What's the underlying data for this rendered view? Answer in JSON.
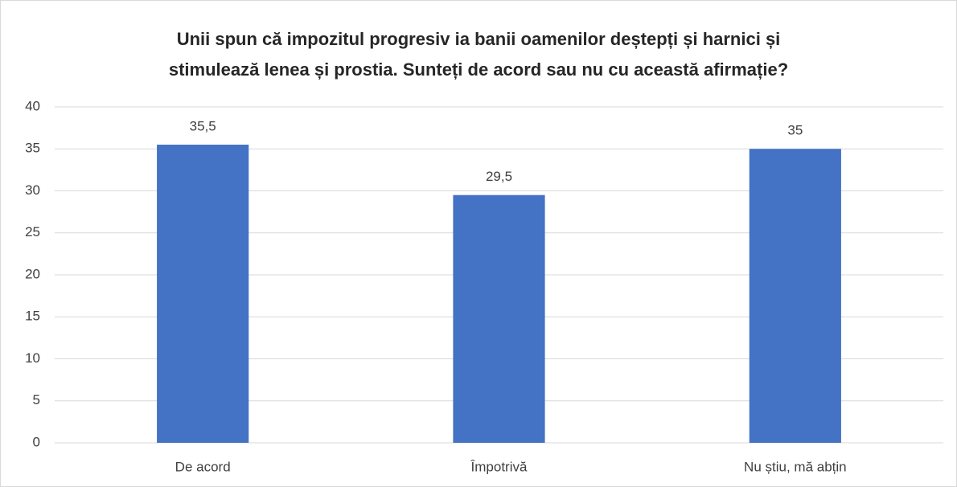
{
  "chart_data": {
    "type": "bar",
    "title": [
      "Unii spun că impozitul progresiv ia banii oamenilor deștepți și harnici și",
      "stimulează lenea și prostia. Sunteți de acord sau nu cu această afirmație?"
    ],
    "categories": [
      "De acord",
      "Împotrivă",
      "Nu știu, mă abțin"
    ],
    "values": [
      35.5,
      29.5,
      35
    ],
    "value_labels": [
      "35,5",
      "29,5",
      "35"
    ],
    "color": "#4472c4",
    "ylim": [
      0,
      40
    ],
    "yticks": [
      0,
      5,
      10,
      15,
      20,
      25,
      30,
      35,
      40
    ],
    "grid": true
  }
}
